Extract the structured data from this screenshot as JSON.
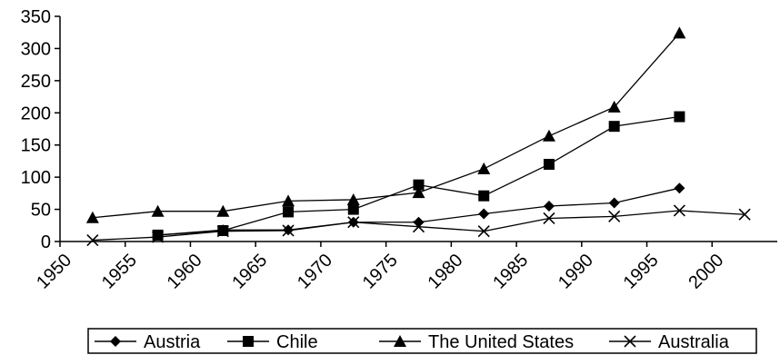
{
  "chart_data": {
    "type": "line",
    "title": "",
    "xlabel": "",
    "ylabel": "",
    "xlim": [
      1950,
      2005
    ],
    "ylim": [
      0,
      350
    ],
    "x_ticks": [
      1950,
      1955,
      1960,
      1965,
      1970,
      1975,
      1980,
      1985,
      1990,
      1995,
      2000
    ],
    "y_ticks": [
      0,
      50,
      100,
      150,
      200,
      250,
      300,
      350
    ],
    "x_tick_labels": [
      "1950",
      "1955",
      "1960",
      "1965",
      "1970",
      "1975",
      "1980",
      "1985",
      "1990",
      "1995",
      "2000"
    ],
    "y_tick_labels": [
      "0",
      "50",
      "100",
      "150",
      "200",
      "250",
      "300",
      "350"
    ],
    "grid": false,
    "legend_position": "bottom",
    "series": [
      {
        "name": "Austria",
        "marker": "diamond",
        "x": [
          1957.5,
          1962.5,
          1967.5,
          1972.5,
          1977.5,
          1982.5,
          1987.5,
          1992.5,
          1997.5
        ],
        "y": [
          10,
          18,
          18,
          30,
          30,
          43,
          55,
          60,
          83
        ]
      },
      {
        "name": "Chile",
        "marker": "square",
        "x": [
          1957.5,
          1962.5,
          1967.5,
          1972.5,
          1977.5,
          1982.5,
          1987.5,
          1992.5,
          1997.5
        ],
        "y": [
          10,
          17,
          46,
          50,
          88,
          71,
          120,
          179,
          194
        ]
      },
      {
        "name": "The United States",
        "marker": "triangle",
        "x": [
          1952.5,
          1957.5,
          1962.5,
          1967.5,
          1972.5,
          1977.5,
          1982.5,
          1987.5,
          1992.5,
          1997.5
        ],
        "y": [
          37,
          47,
          47,
          63,
          65,
          76,
          113,
          164,
          209,
          324
        ]
      },
      {
        "name": "Australia",
        "marker": "x",
        "x": [
          1952.5,
          1957.5,
          1962.5,
          1967.5,
          1972.5,
          1977.5,
          1982.5,
          1987.5,
          1992.5,
          1997.5,
          2002.5
        ],
        "y": [
          2,
          7,
          16,
          17,
          30,
          23,
          16,
          36,
          39,
          48,
          42
        ]
      }
    ]
  }
}
